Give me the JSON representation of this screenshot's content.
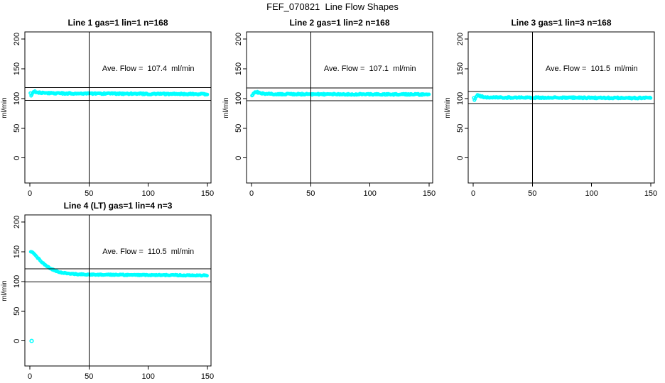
{
  "figure": {
    "title": "FEF_070821  Line Flow Shapes",
    "background": "#ffffff",
    "point_color": "#00ffff",
    "axis_color": "#000000",
    "unit": "ml/min"
  },
  "chart_data": [
    {
      "type": "scatter",
      "title": "Line 1 gas=1 lin=1 n=168",
      "annotation": "Ave. Flow =  107.4  ml/min",
      "ave_flow": 107.4,
      "n": 168,
      "xlabel": "",
      "ylabel": "ml/min",
      "x_ticks": [
        0,
        50,
        100,
        150
      ],
      "y_ticks": [
        0,
        50,
        100,
        150,
        200
      ],
      "xlim": [
        0,
        150
      ],
      "ylim": [
        0,
        200
      ],
      "grid": false,
      "legend": "none",
      "ref_hlines": [
        118.1,
        96.7
      ],
      "ref_vline": 50,
      "noise": 2.2,
      "x_range": [
        0.4,
        150
      ],
      "profile": [
        [
          0.5,
          108
        ],
        [
          1.2,
          104.5
        ],
        [
          2,
          109
        ],
        [
          3.5,
          112
        ],
        [
          5,
          111.5
        ],
        [
          8,
          110
        ],
        [
          14,
          109
        ],
        [
          30,
          108.5
        ],
        [
          70,
          108.2
        ],
        [
          110,
          107.8
        ],
        [
          150,
          107.4
        ]
      ],
      "outliers": [],
      "col": 0,
      "row": 0
    },
    {
      "type": "scatter",
      "title": "Line 2 gas=1 lin=2 n=168",
      "annotation": "Ave. Flow =  107.1  ml/min",
      "ave_flow": 107.1,
      "n": 168,
      "xlabel": "",
      "ylabel": "ml/min",
      "x_ticks": [
        0,
        50,
        100,
        150
      ],
      "y_ticks": [
        0,
        50,
        100,
        150,
        200
      ],
      "xlim": [
        0,
        150
      ],
      "ylim": [
        0,
        200
      ],
      "grid": false,
      "legend": "none",
      "ref_hlines": [
        117.8,
        96.4
      ],
      "ref_vline": 50,
      "noise": 2.2,
      "x_range": [
        0.4,
        150
      ],
      "profile": [
        [
          0.5,
          104.5
        ],
        [
          1.5,
          108.5
        ],
        [
          3,
          111.5
        ],
        [
          5,
          110.5
        ],
        [
          8,
          108.5
        ],
        [
          15,
          107.6
        ],
        [
          50,
          107.2
        ],
        [
          100,
          107.0
        ],
        [
          150,
          106.8
        ]
      ],
      "outliers": [],
      "col": 1,
      "row": 0
    },
    {
      "type": "scatter",
      "title": "Line 3 gas=1 lin=3 n=168",
      "annotation": "Ave. Flow =  101.5  ml/min",
      "ave_flow": 101.5,
      "n": 168,
      "xlabel": "",
      "ylabel": "ml/min",
      "x_ticks": [
        0,
        50,
        100,
        150
      ],
      "y_ticks": [
        0,
        50,
        100,
        150,
        200
      ],
      "xlim": [
        0,
        150
      ],
      "ylim": [
        0,
        200
      ],
      "grid": false,
      "legend": "none",
      "ref_hlines": [
        111.7,
        91.4
      ],
      "ref_vline": 50,
      "noise": 2.2,
      "x_range": [
        0.4,
        150
      ],
      "profile": [
        [
          0.5,
          100
        ],
        [
          1.2,
          97.5
        ],
        [
          2.5,
          104
        ],
        [
          4,
          106.5
        ],
        [
          6,
          104
        ],
        [
          10,
          102.2
        ],
        [
          20,
          101.6
        ],
        [
          60,
          101.4
        ],
        [
          110,
          101.2
        ],
        [
          150,
          100.8
        ]
      ],
      "outliers": [],
      "col": 2,
      "row": 0
    },
    {
      "type": "scatter",
      "title": "Line 4 (LT) gas=1 lin=4 n=3",
      "annotation": "Ave. Flow =  110.5  ml/min",
      "ave_flow": 110.5,
      "n": 3,
      "xlabel": "",
      "ylabel": "ml/min",
      "x_ticks": [
        0,
        50,
        100,
        150
      ],
      "y_ticks": [
        0,
        50,
        100,
        150,
        200
      ],
      "xlim": [
        0,
        150
      ],
      "ylim": [
        0,
        200
      ],
      "grid": false,
      "legend": "none",
      "ref_hlines": [
        121.6,
        99.5
      ],
      "ref_vline": 50,
      "noise": 1.6,
      "x_range": [
        0.8,
        150
      ],
      "profile": [
        [
          0.8,
          150
        ],
        [
          1.5,
          149.8
        ],
        [
          2.5,
          148.5
        ],
        [
          3.5,
          146.5
        ],
        [
          4.5,
          144.5
        ],
        [
          5.5,
          142.3
        ],
        [
          6.5,
          140
        ],
        [
          7.5,
          137.8
        ],
        [
          8.5,
          135.7
        ],
        [
          9.5,
          133.8
        ],
        [
          11,
          131
        ],
        [
          13,
          127.8
        ],
        [
          15,
          125
        ],
        [
          17,
          122.5
        ],
        [
          19,
          120.4
        ],
        [
          21,
          118.7
        ],
        [
          24,
          116.6
        ],
        [
          27,
          115
        ],
        [
          31,
          113.6
        ],
        [
          36,
          112.6
        ],
        [
          42,
          112
        ],
        [
          55,
          111.5
        ],
        [
          75,
          111.2
        ],
        [
          100,
          111
        ],
        [
          125,
          110.6
        ],
        [
          150,
          110.1
        ]
      ],
      "outliers": [
        [
          1.5,
          0
        ]
      ],
      "col": 0,
      "row": 1
    }
  ]
}
